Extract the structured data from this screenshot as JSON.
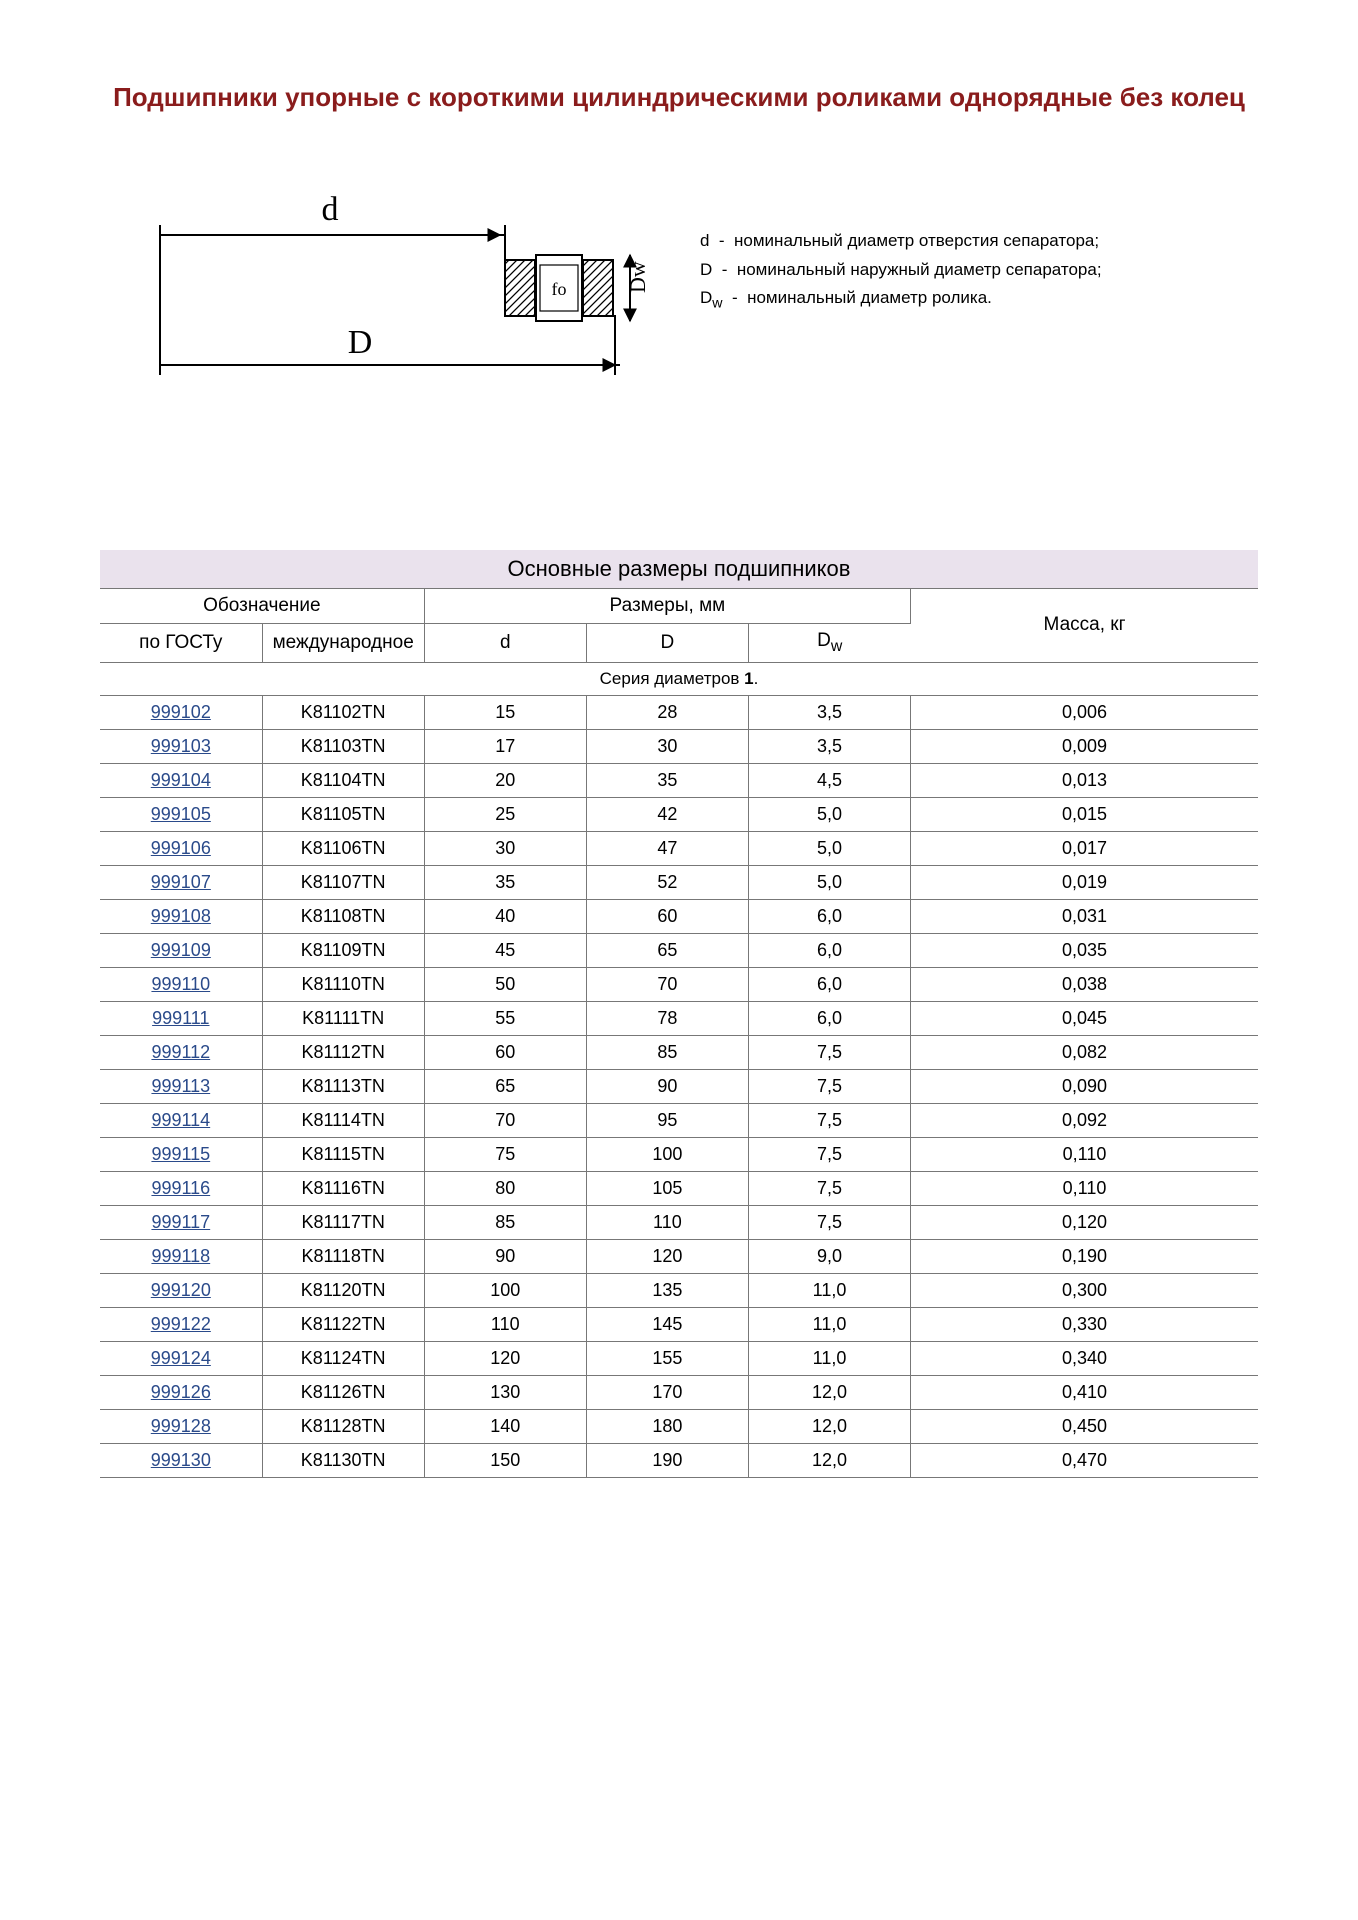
{
  "colors": {
    "title": "#8a1c1c",
    "link": "#2a4a8a",
    "header_band_bg": "#eae2ed",
    "border": "#777777",
    "text": "#000000"
  },
  "title": "Подшипники упорные с короткими цилиндрическими роликами однорядные без колец",
  "diagram": {
    "label_d": "d",
    "label_D": "D",
    "label_Dw": "Dw",
    "label_fo": "fo"
  },
  "legend": {
    "line1_sym": "d",
    "line1_txt": "номинальный диаметр отверстия сепаратора;",
    "line2_sym": "D",
    "line2_txt": "номинальный наружный диаметр сепаратора;",
    "line3_sym": "D",
    "line3_sub": "w",
    "line3_txt": "номинальный диаметр ролика."
  },
  "table": {
    "title": "Основные размеры подшипников",
    "group1": "Обозначение",
    "group2": "Размеры, мм",
    "col_gost": "по ГОСТу",
    "col_intl": "международное",
    "col_d": "d",
    "col_D": "D",
    "col_Dw_main": "D",
    "col_Dw_sub": "w",
    "col_mass": "Масса, кг",
    "section1_prefix": "Серия диаметров ",
    "section1_num": "1",
    "section1_suffix": ".",
    "rows": [
      {
        "gost": "999102",
        "intl": "K81102TN",
        "d": "15",
        "D": "28",
        "Dw": "3,5",
        "mass": "0,006"
      },
      {
        "gost": "999103",
        "intl": "K81103TN",
        "d": "17",
        "D": "30",
        "Dw": "3,5",
        "mass": "0,009"
      },
      {
        "gost": "999104",
        "intl": "K81104TN",
        "d": "20",
        "D": "35",
        "Dw": "4,5",
        "mass": "0,013"
      },
      {
        "gost": "999105",
        "intl": "K81105TN",
        "d": "25",
        "D": "42",
        "Dw": "5,0",
        "mass": "0,015"
      },
      {
        "gost": "999106",
        "intl": "K81106TN",
        "d": "30",
        "D": "47",
        "Dw": "5,0",
        "mass": "0,017"
      },
      {
        "gost": "999107",
        "intl": "K81107TN",
        "d": "35",
        "D": "52",
        "Dw": "5,0",
        "mass": "0,019"
      },
      {
        "gost": "999108",
        "intl": "K81108TN",
        "d": "40",
        "D": "60",
        "Dw": "6,0",
        "mass": "0,031"
      },
      {
        "gost": "999109",
        "intl": "K81109TN",
        "d": "45",
        "D": "65",
        "Dw": "6,0",
        "mass": "0,035"
      },
      {
        "gost": "999110",
        "intl": "K81110TN",
        "d": "50",
        "D": "70",
        "Dw": "6,0",
        "mass": "0,038"
      },
      {
        "gost": "999111",
        "intl": "K81111TN",
        "d": "55",
        "D": "78",
        "Dw": "6,0",
        "mass": "0,045"
      },
      {
        "gost": "999112",
        "intl": "K81112TN",
        "d": "60",
        "D": "85",
        "Dw": "7,5",
        "mass": "0,082"
      },
      {
        "gost": "999113",
        "intl": "K81113TN",
        "d": "65",
        "D": "90",
        "Dw": "7,5",
        "mass": "0,090"
      },
      {
        "gost": "999114",
        "intl": "K81114TN",
        "d": "70",
        "D": "95",
        "Dw": "7,5",
        "mass": "0,092"
      },
      {
        "gost": "999115",
        "intl": "K81115TN",
        "d": "75",
        "D": "100",
        "Dw": "7,5",
        "mass": "0,110"
      },
      {
        "gost": "999116",
        "intl": "K81116TN",
        "d": "80",
        "D": "105",
        "Dw": "7,5",
        "mass": "0,110"
      },
      {
        "gost": "999117",
        "intl": "K81117TN",
        "d": "85",
        "D": "110",
        "Dw": "7,5",
        "mass": "0,120"
      },
      {
        "gost": "999118",
        "intl": "K81118TN",
        "d": "90",
        "D": "120",
        "Dw": "9,0",
        "mass": "0,190"
      },
      {
        "gost": "999120",
        "intl": "K81120TN",
        "d": "100",
        "D": "135",
        "Dw": "11,0",
        "mass": "0,300"
      },
      {
        "gost": "999122",
        "intl": "K81122TN",
        "d": "110",
        "D": "145",
        "Dw": "11,0",
        "mass": "0,330"
      },
      {
        "gost": "999124",
        "intl": "K81124TN",
        "d": "120",
        "D": "155",
        "Dw": "11,0",
        "mass": "0,340"
      },
      {
        "gost": "999126",
        "intl": "K81126TN",
        "d": "130",
        "D": "170",
        "Dw": "12,0",
        "mass": "0,410"
      },
      {
        "gost": "999128",
        "intl": "K81128TN",
        "d": "140",
        "D": "180",
        "Dw": "12,0",
        "mass": "0,450"
      },
      {
        "gost": "999130",
        "intl": "K81130TN",
        "d": "150",
        "D": "190",
        "Dw": "12,0",
        "mass": "0,470"
      }
    ]
  }
}
